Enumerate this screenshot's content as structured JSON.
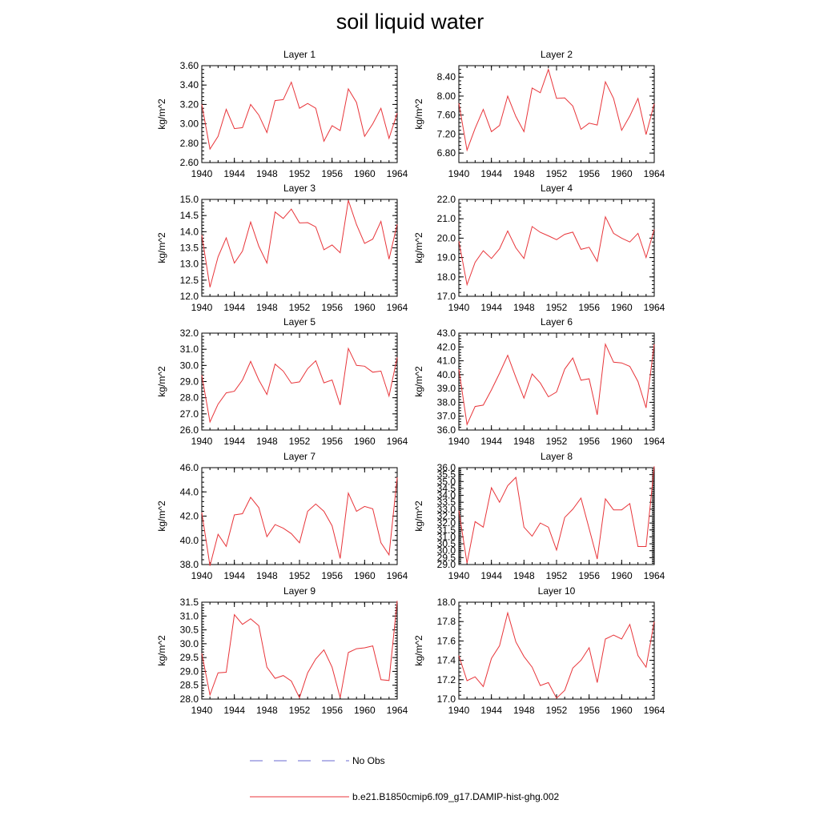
{
  "page": {
    "title": "soil liquid water"
  },
  "legend": {
    "items": [
      {
        "label": "No Obs",
        "color": "#6a6ad0",
        "style": "dashed"
      },
      {
        "label": "b.e21.B1850cmip6.f09_g17.DAMIP-hist-ghg.002",
        "color": "#e8353a",
        "style": "solid"
      }
    ]
  },
  "colors": {
    "series": "#e8353a",
    "axis": "#000000"
  },
  "chart_data": [
    {
      "type": "line",
      "title": "Layer 1",
      "ylabel": "kg/m^2",
      "xlim": [
        1940,
        1964
      ],
      "xticks": [
        1940,
        1944,
        1948,
        1952,
        1956,
        1960,
        1964
      ],
      "ylim": [
        2.6,
        3.6
      ],
      "yticks": [
        "2.60",
        "2.80",
        "3.00",
        "3.20",
        "3.40",
        "3.60"
      ],
      "x": [
        1940,
        1941,
        1942,
        1943,
        1944,
        1945,
        1946,
        1947,
        1948,
        1949,
        1950,
        1951,
        1952,
        1953,
        1954,
        1955,
        1956,
        1957,
        1958,
        1959,
        1960,
        1961,
        1962,
        1963,
        1964
      ],
      "series": [
        {
          "name": "b.e21.B1850cmip6.f09_g17.DAMIP-hist-ghg.002",
          "values": [
            3.2,
            2.74,
            2.87,
            3.15,
            2.95,
            2.96,
            3.2,
            3.09,
            2.91,
            3.24,
            3.25,
            3.43,
            3.16,
            3.21,
            3.16,
            2.82,
            2.98,
            2.93,
            3.36,
            3.22,
            2.87,
            3.0,
            3.16,
            2.85,
            3.11
          ]
        }
      ]
    },
    {
      "type": "line",
      "title": "Layer 2",
      "ylabel": "kg/m^2",
      "xlim": [
        1940,
        1964
      ],
      "xticks": [
        1940,
        1944,
        1948,
        1952,
        1956,
        1960,
        1964
      ],
      "ylim": [
        6.6,
        8.64
      ],
      "yticks": [
        "6.80",
        "7.20",
        "7.60",
        "8.00",
        "8.40"
      ],
      "x": [
        1940,
        1941,
        1942,
        1943,
        1944,
        1945,
        1946,
        1947,
        1948,
        1949,
        1950,
        1951,
        1952,
        1953,
        1954,
        1955,
        1956,
        1957,
        1958,
        1959,
        1960,
        1961,
        1962,
        1963,
        1964
      ],
      "series": [
        {
          "name": "b.e21.B1850cmip6.f09_g17.DAMIP-hist-ghg.002",
          "values": [
            7.85,
            6.86,
            7.32,
            7.72,
            7.25,
            7.38,
            8.0,
            7.57,
            7.25,
            8.17,
            8.07,
            8.56,
            7.95,
            7.96,
            7.79,
            7.3,
            7.43,
            7.39,
            8.3,
            7.95,
            7.28,
            7.58,
            7.95,
            7.19,
            7.84
          ]
        }
      ]
    },
    {
      "type": "line",
      "title": "Layer 3",
      "ylabel": "kg/m^2",
      "xlim": [
        1940,
        1964
      ],
      "xticks": [
        1940,
        1944,
        1948,
        1952,
        1956,
        1960,
        1964
      ],
      "ylim": [
        12.0,
        15.0
      ],
      "yticks": [
        "12.0",
        "12.5",
        "13.0",
        "13.5",
        "14.0",
        "14.5",
        "15.0"
      ],
      "x": [
        1940,
        1941,
        1942,
        1943,
        1944,
        1945,
        1946,
        1947,
        1948,
        1949,
        1950,
        1951,
        1952,
        1953,
        1954,
        1955,
        1956,
        1957,
        1958,
        1959,
        1960,
        1961,
        1962,
        1963,
        1964
      ],
      "series": [
        {
          "name": "b.e21.B1850cmip6.f09_g17.DAMIP-hist-ghg.002",
          "values": [
            13.9,
            12.28,
            13.22,
            13.81,
            13.03,
            13.4,
            14.3,
            13.55,
            13.03,
            14.61,
            14.41,
            14.7,
            14.27,
            14.28,
            14.15,
            13.44,
            13.59,
            13.35,
            14.97,
            14.22,
            13.64,
            13.77,
            14.32,
            13.15,
            14.23
          ]
        }
      ]
    },
    {
      "type": "line",
      "title": "Layer 4",
      "ylabel": "kg/m^2",
      "xlim": [
        1940,
        1964
      ],
      "xticks": [
        1940,
        1944,
        1948,
        1952,
        1956,
        1960,
        1964
      ],
      "ylim": [
        17.0,
        22.0
      ],
      "yticks": [
        "17.0",
        "18.0",
        "19.0",
        "20.0",
        "21.0",
        "22.0"
      ],
      "x": [
        1940,
        1941,
        1942,
        1943,
        1944,
        1945,
        1946,
        1947,
        1948,
        1949,
        1950,
        1951,
        1952,
        1953,
        1954,
        1955,
        1956,
        1957,
        1958,
        1959,
        1960,
        1961,
        1962,
        1963,
        1964
      ],
      "series": [
        {
          "name": "b.e21.B1850cmip6.f09_g17.DAMIP-hist-ghg.002",
          "values": [
            19.84,
            17.6,
            18.75,
            19.35,
            18.95,
            19.45,
            20.37,
            19.5,
            18.95,
            20.6,
            20.3,
            20.12,
            19.92,
            20.2,
            20.31,
            19.42,
            19.53,
            18.8,
            21.1,
            20.25,
            20.0,
            19.8,
            20.25,
            19.0,
            20.45
          ]
        }
      ]
    },
    {
      "type": "line",
      "title": "Layer 5",
      "ylabel": "kg/m^2",
      "xlim": [
        1940,
        1964
      ],
      "xticks": [
        1940,
        1944,
        1948,
        1952,
        1956,
        1960,
        1964
      ],
      "ylim": [
        26.0,
        32.0
      ],
      "yticks": [
        "26.0",
        "27.0",
        "28.0",
        "29.0",
        "30.0",
        "31.0",
        "32.0"
      ],
      "x": [
        1940,
        1941,
        1942,
        1943,
        1944,
        1945,
        1946,
        1947,
        1948,
        1949,
        1950,
        1951,
        1952,
        1953,
        1954,
        1955,
        1956,
        1957,
        1958,
        1959,
        1960,
        1961,
        1962,
        1963,
        1964
      ],
      "series": [
        {
          "name": "b.e21.B1850cmip6.f09_g17.DAMIP-hist-ghg.002",
          "values": [
            29.4,
            26.5,
            27.6,
            28.3,
            28.4,
            29.1,
            30.25,
            29.1,
            28.2,
            30.08,
            29.65,
            28.9,
            28.98,
            29.8,
            30.29,
            28.92,
            29.1,
            27.55,
            31.05,
            30.0,
            29.95,
            29.58,
            29.65,
            28.1,
            30.5
          ]
        }
      ]
    },
    {
      "type": "line",
      "title": "Layer 6",
      "ylabel": "kg/m^2",
      "xlim": [
        1940,
        1964
      ],
      "xticks": [
        1940,
        1944,
        1948,
        1952,
        1956,
        1960,
        1964
      ],
      "ylim": [
        36.0,
        43.0
      ],
      "yticks": [
        "36.0",
        "37.0",
        "38.0",
        "39.0",
        "40.0",
        "41.0",
        "42.0",
        "43.0"
      ],
      "x": [
        1940,
        1941,
        1942,
        1943,
        1944,
        1945,
        1946,
        1947,
        1948,
        1949,
        1950,
        1951,
        1952,
        1953,
        1954,
        1955,
        1956,
        1957,
        1958,
        1959,
        1960,
        1961,
        1962,
        1963,
        1964
      ],
      "series": [
        {
          "name": "b.e21.B1850cmip6.f09_g17.DAMIP-hist-ghg.002",
          "values": [
            40.4,
            36.4,
            37.7,
            37.8,
            38.9,
            40.1,
            41.4,
            39.8,
            38.3,
            40.05,
            39.4,
            38.4,
            38.75,
            40.4,
            41.2,
            39.6,
            39.7,
            37.1,
            42.2,
            40.9,
            40.85,
            40.6,
            39.5,
            37.6,
            42.2
          ]
        }
      ]
    },
    {
      "type": "line",
      "title": "Layer 7",
      "ylabel": "kg/m^2",
      "xlim": [
        1940,
        1964
      ],
      "xticks": [
        1940,
        1944,
        1948,
        1952,
        1956,
        1960,
        1964
      ],
      "ylim": [
        38.0,
        46.0
      ],
      "yticks": [
        "38.0",
        "40.0",
        "42.0",
        "44.0",
        "46.0"
      ],
      "x": [
        1940,
        1941,
        1942,
        1943,
        1944,
        1945,
        1946,
        1947,
        1948,
        1949,
        1950,
        1951,
        1952,
        1953,
        1954,
        1955,
        1956,
        1957,
        1958,
        1959,
        1960,
        1961,
        1962,
        1963,
        1964
      ],
      "series": [
        {
          "name": "b.e21.B1850cmip6.f09_g17.DAMIP-hist-ghg.002",
          "values": [
            42.3,
            37.9,
            40.5,
            39.5,
            42.1,
            42.2,
            43.55,
            42.7,
            40.3,
            41.3,
            41.0,
            40.55,
            39.8,
            42.4,
            43.0,
            42.4,
            41.2,
            38.5,
            43.9,
            42.4,
            42.8,
            42.6,
            39.8,
            38.8,
            45.2
          ]
        }
      ]
    },
    {
      "type": "line",
      "title": "Layer 8",
      "ylabel": "kg/m^2",
      "xlim": [
        1940,
        1964
      ],
      "xticks": [
        1940,
        1944,
        1948,
        1952,
        1956,
        1960,
        1964
      ],
      "ylim": [
        29.0,
        36.0
      ],
      "yticks": [
        "29.0",
        "29.5",
        "30.0",
        "30.5",
        "31.0",
        "31.5",
        "32.0",
        "32.5",
        "33.0",
        "33.5",
        "34.0",
        "34.5",
        "35.0",
        "35.5",
        "36.0"
      ],
      "x": [
        1940,
        1941,
        1942,
        1943,
        1944,
        1945,
        1946,
        1947,
        1948,
        1949,
        1950,
        1951,
        1952,
        1953,
        1954,
        1955,
        1956,
        1957,
        1958,
        1959,
        1960,
        1961,
        1962,
        1963,
        1964
      ],
      "series": [
        {
          "name": "b.e21.B1850cmip6.f09_g17.DAMIP-hist-ghg.002",
          "values": [
            32.9,
            29.1,
            32.1,
            31.7,
            34.55,
            33.5,
            34.7,
            35.3,
            31.7,
            31.05,
            32.0,
            31.7,
            30.05,
            32.4,
            33.0,
            33.8,
            31.6,
            29.4,
            33.75,
            32.95,
            32.95,
            33.4,
            30.3,
            30.3,
            36.1
          ]
        }
      ]
    },
    {
      "type": "line",
      "title": "Layer 9",
      "ylabel": "kg/m^2",
      "xlim": [
        1940,
        1964
      ],
      "xticks": [
        1940,
        1944,
        1948,
        1952,
        1956,
        1960,
        1964
      ],
      "ylim": [
        28.0,
        31.5
      ],
      "yticks": [
        "28.0",
        "28.5",
        "29.0",
        "29.5",
        "30.0",
        "30.5",
        "31.0",
        "31.5"
      ],
      "x": [
        1940,
        1941,
        1942,
        1943,
        1944,
        1945,
        1946,
        1947,
        1948,
        1949,
        1950,
        1951,
        1952,
        1953,
        1954,
        1955,
        1956,
        1957,
        1958,
        1959,
        1960,
        1961,
        1962,
        1963,
        1964
      ],
      "series": [
        {
          "name": "b.e21.B1850cmip6.f09_g17.DAMIP-hist-ghg.002",
          "values": [
            29.65,
            28.15,
            28.95,
            28.97,
            31.05,
            30.7,
            30.9,
            30.65,
            29.15,
            28.75,
            28.85,
            28.65,
            28.05,
            28.95,
            29.45,
            29.78,
            29.15,
            28.05,
            29.68,
            29.82,
            29.85,
            29.92,
            28.7,
            28.67,
            31.55
          ]
        }
      ]
    },
    {
      "type": "line",
      "title": "Layer 10",
      "ylabel": "kg/m^2",
      "xlim": [
        1940,
        1964
      ],
      "xticks": [
        1940,
        1944,
        1948,
        1952,
        1956,
        1960,
        1964
      ],
      "ylim": [
        17.0,
        18.0
      ],
      "yticks": [
        "17.0",
        "17.2",
        "17.4",
        "17.6",
        "17.8",
        "18.0"
      ],
      "x": [
        1940,
        1941,
        1942,
        1943,
        1944,
        1945,
        1946,
        1947,
        1948,
        1949,
        1950,
        1951,
        1952,
        1953,
        1954,
        1955,
        1956,
        1957,
        1958,
        1959,
        1960,
        1961,
        1962,
        1963,
        1964
      ],
      "series": [
        {
          "name": "b.e21.B1850cmip6.f09_g17.DAMIP-hist-ghg.002",
          "values": [
            17.45,
            17.19,
            17.23,
            17.13,
            17.42,
            17.55,
            17.89,
            17.59,
            17.44,
            17.33,
            17.14,
            17.17,
            17.01,
            17.09,
            17.32,
            17.4,
            17.53,
            17.17,
            17.62,
            17.66,
            17.62,
            17.77,
            17.45,
            17.33,
            17.8
          ]
        }
      ]
    }
  ]
}
